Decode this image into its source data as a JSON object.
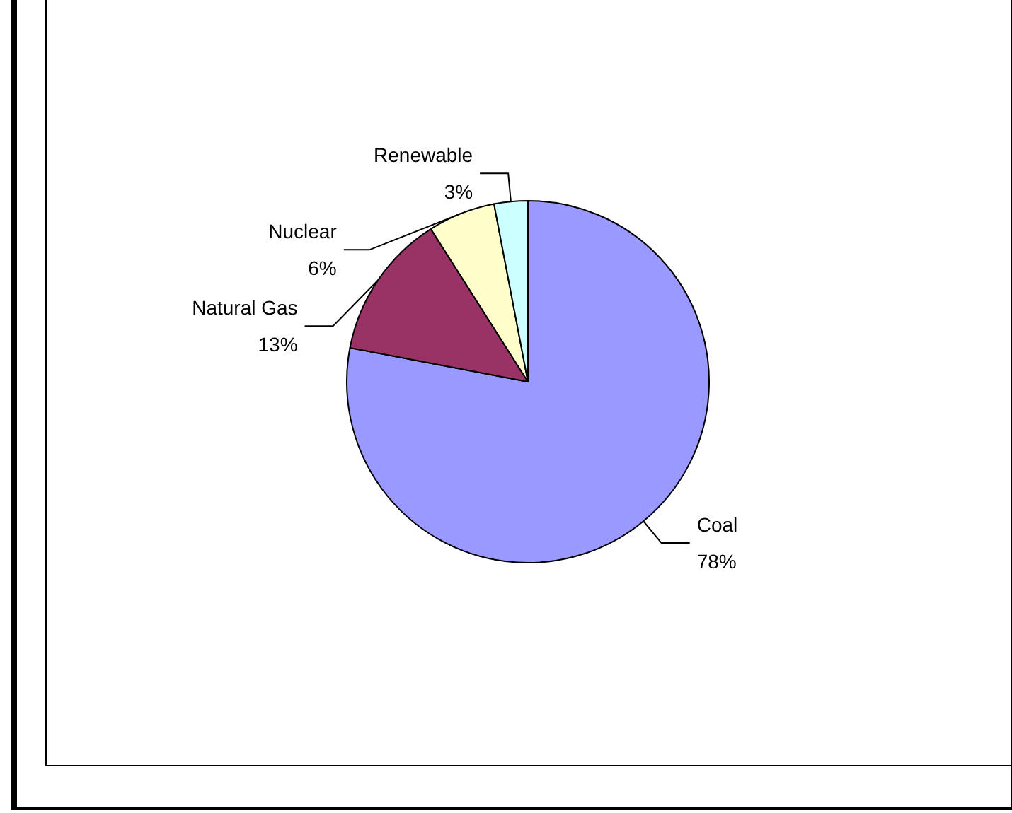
{
  "chart_data": {
    "type": "pie",
    "categories": [
      "Coal",
      "Natural Gas",
      "Nuclear",
      "Renewable"
    ],
    "values": [
      78,
      13,
      6,
      3
    ],
    "value_labels": [
      "78%",
      "13%",
      "6%",
      "3%"
    ],
    "colors": [
      "#9999ff",
      "#993366",
      "#ffffcc",
      "#ccffff"
    ],
    "legend": false
  }
}
